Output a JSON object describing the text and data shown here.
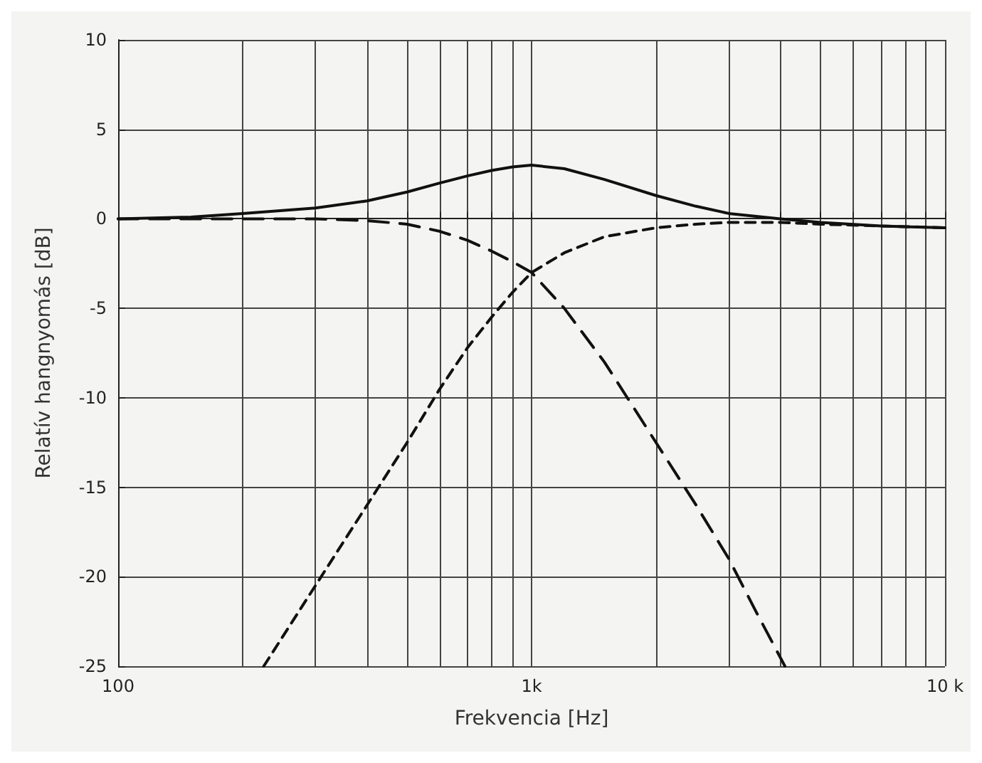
{
  "chart_data": {
    "type": "line",
    "xlabel": "Frekvencia [Hz]",
    "ylabel": "Relatív hangnyomás [dB]",
    "log": "x",
    "grid": true,
    "marker": "none",
    "xlim": [
      100,
      10000
    ],
    "ylim": [
      -25,
      10
    ],
    "xticks": [
      {
        "value": 100,
        "label": "100"
      },
      {
        "value": 200,
        "label": null
      },
      {
        "value": 300,
        "label": null
      },
      {
        "value": 400,
        "label": null
      },
      {
        "value": 500,
        "label": null
      },
      {
        "value": 600,
        "label": null
      },
      {
        "value": 700,
        "label": null
      },
      {
        "value": 800,
        "label": null
      },
      {
        "value": 900,
        "label": null
      },
      {
        "value": 1000,
        "label": "1k"
      },
      {
        "value": 2000,
        "label": null
      },
      {
        "value": 3000,
        "label": null
      },
      {
        "value": 4000,
        "label": null
      },
      {
        "value": 5000,
        "label": null
      },
      {
        "value": 6000,
        "label": null
      },
      {
        "value": 7000,
        "label": null
      },
      {
        "value": 8000,
        "label": null
      },
      {
        "value": 9000,
        "label": null
      },
      {
        "value": 10000,
        "label": "10 k"
      }
    ],
    "yticks": [
      -25,
      -20,
      -15,
      -10,
      -5,
      0,
      5,
      10
    ],
    "series": [
      {
        "color": "#111111",
        "line_style": "solid",
        "x": [
          100,
          150,
          200,
          300,
          400,
          500,
          600,
          700,
          800,
          900,
          1000,
          1200,
          1500,
          2000,
          2500,
          3000,
          4000,
          5000,
          7000,
          10000
        ],
        "values": [
          0,
          0.1,
          0.3,
          0.6,
          1,
          1.5,
          2,
          2.4,
          2.7,
          2.9,
          3,
          2.8,
          2.2,
          1.3,
          0.7,
          0.3,
          0,
          -0.2,
          -0.4,
          -0.5
        ]
      },
      {
        "color": "#111111",
        "line_style": "dashed",
        "x": [
          100,
          200,
          300,
          400,
          500,
          600,
          700,
          800,
          900,
          1000,
          1200,
          1500,
          2000,
          2500,
          3000,
          3500,
          4100
        ],
        "values": [
          0,
          0,
          0,
          -0.1,
          -0.3,
          -0.7,
          -1.2,
          -1.8,
          -2.4,
          -3,
          -5,
          -8,
          -12.5,
          -16,
          -19,
          -22,
          -25
        ]
      },
      {
        "color": "#111111",
        "line_style": "dashed",
        "x": [
          225,
          300,
          400,
          500,
          600,
          700,
          800,
          900,
          1000,
          1200,
          1500,
          2000,
          2500,
          3000,
          4000,
          5000,
          7000,
          10000
        ],
        "values": [
          -25,
          -20.5,
          -16,
          -12.5,
          -9.5,
          -7.2,
          -5.5,
          -4.1,
          -3,
          -1.9,
          -1,
          -0.5,
          -0.3,
          -0.2,
          -0.2,
          -0.3,
          -0.4,
          -0.5
        ]
      }
    ]
  }
}
